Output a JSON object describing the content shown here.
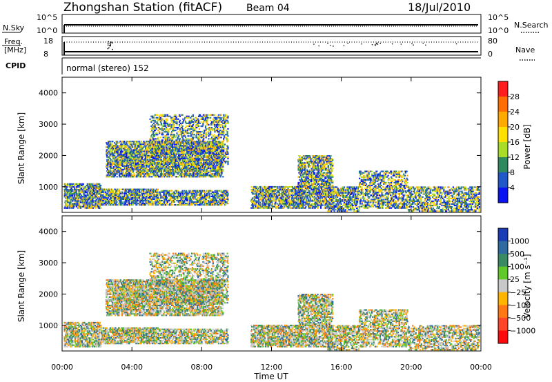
{
  "header": {
    "station_title": "Zhongshan Station (fitACF)",
    "beam": "Beam 04",
    "date": "18/Jul/2010"
  },
  "top_panels": {
    "nsky_label": "N.Sky",
    "nsky_ticks": [
      "10^5",
      "10^0"
    ],
    "nsearch_label": "N.Search",
    "nsearch_ticks": [
      "10^5",
      "10^0"
    ],
    "freq_label": "Freq.",
    "freq_unit": "[MHz]",
    "freq_ticks": [
      "18",
      "8"
    ],
    "nave_label": "Nave",
    "nave_ticks": [
      "80",
      "0"
    ],
    "cpid_label": "CPID",
    "cpid_text": "normal (stereo) 152"
  },
  "chart_data": [
    {
      "type": "heatmap",
      "name": "power",
      "ylabel": "Slant Range [km]",
      "yticks": [
        1000,
        2000,
        3000,
        4000
      ],
      "ylim": [
        180,
        4500
      ],
      "xlim": [
        0,
        24
      ],
      "colorbar": {
        "label": "Power [dB]",
        "ticks": [
          "28",
          "24",
          "20",
          "16",
          "12",
          "8",
          "4"
        ],
        "colors": [
          "#ff1e1e",
          "#ff6e00",
          "#ffaa00",
          "#ffe000",
          "#a8dc28",
          "#2e8a5e",
          "#2058c8",
          "#0a14f0"
        ]
      }
    },
    {
      "type": "heatmap",
      "name": "velocity",
      "ylabel": "Slant Range [km]",
      "yticks": [
        1000,
        2000,
        3000,
        4000
      ],
      "ylim": [
        180,
        4500
      ],
      "xlim": [
        0,
        24
      ],
      "xlabel": "Time UT",
      "xticks": [
        "00:00",
        "04:00",
        "08:00",
        "12:00",
        "16:00",
        "20:00",
        "00:00"
      ],
      "colorbar": {
        "label": "Velocity [m s⁻¹]",
        "ticks": [
          "1000",
          "500",
          "100",
          "25",
          "−25",
          "−100",
          "−500",
          "−1000"
        ],
        "colors": [
          "#1a3cb4",
          "#2f6aa0",
          "#3a8a64",
          "#60c828",
          "#c8c8c8",
          "#ffb400",
          "#ff7814",
          "#ff4628",
          "#ff0a0a"
        ]
      }
    }
  ]
}
